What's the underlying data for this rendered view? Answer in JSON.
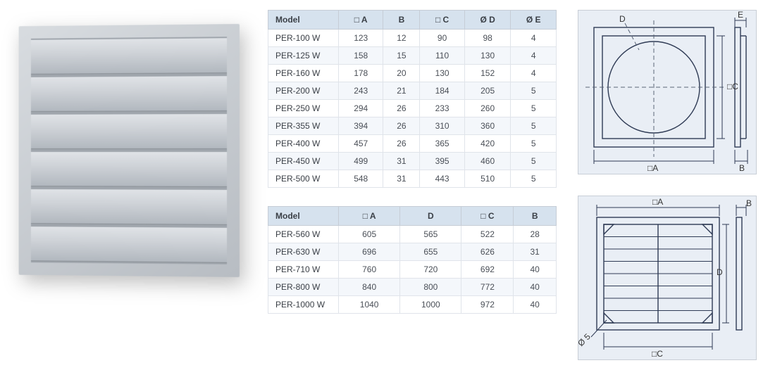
{
  "colors": {
    "header_bg": "#d6e2ee",
    "header_text": "#3a3f46",
    "row_alt_bg": "#f4f7fb",
    "cell_text": "#4a4f57",
    "border": "#e0e4ea",
    "diagram_bg": "#e9eef5",
    "diagram_border": "#c8ced6",
    "diagram_stroke": "#2f3b55",
    "dashed_stroke": "#5a6578"
  },
  "product_photo": {
    "type": "louvered-vent",
    "louver_count": 6
  },
  "table1": {
    "headers": [
      "Model",
      "□ A",
      "B",
      "□ C",
      "Ø D",
      "Ø E"
    ],
    "rows": [
      [
        "PER-100 W",
        "123",
        "12",
        "90",
        "98",
        "4"
      ],
      [
        "PER-125 W",
        "158",
        "15",
        "110",
        "130",
        "4"
      ],
      [
        "PER-160 W",
        "178",
        "20",
        "130",
        "152",
        "4"
      ],
      [
        "PER-200 W",
        "243",
        "21",
        "184",
        "205",
        "5"
      ],
      [
        "PER-250 W",
        "294",
        "26",
        "233",
        "260",
        "5"
      ],
      [
        "PER-355 W",
        "394",
        "26",
        "310",
        "360",
        "5"
      ],
      [
        "PER-400 W",
        "457",
        "26",
        "365",
        "420",
        "5"
      ],
      [
        "PER-450 W",
        "499",
        "31",
        "395",
        "460",
        "5"
      ],
      [
        "PER-500 W",
        "548",
        "31",
        "443",
        "510",
        "5"
      ]
    ]
  },
  "table2": {
    "headers": [
      "Model",
      "□ A",
      "D",
      "□ C",
      "B"
    ],
    "rows": [
      [
        "PER-560 W",
        "605",
        "565",
        "522",
        "28"
      ],
      [
        "PER-630 W",
        "696",
        "655",
        "626",
        "31"
      ],
      [
        "PER-710 W",
        "760",
        "720",
        "692",
        "40"
      ],
      [
        "PER-800 W",
        "840",
        "800",
        "772",
        "40"
      ],
      [
        "PER-1000 W",
        "1040",
        "1000",
        "972",
        "40"
      ]
    ]
  },
  "diagram1": {
    "labels": {
      "D": "D",
      "E": "E",
      "C": "□C",
      "A": "□A",
      "B": "B"
    }
  },
  "diagram2": {
    "labels": {
      "A": "□A",
      "B": "B",
      "D": "D",
      "C": "□C",
      "hole": "Ø 5"
    },
    "louver_rows": 8
  }
}
